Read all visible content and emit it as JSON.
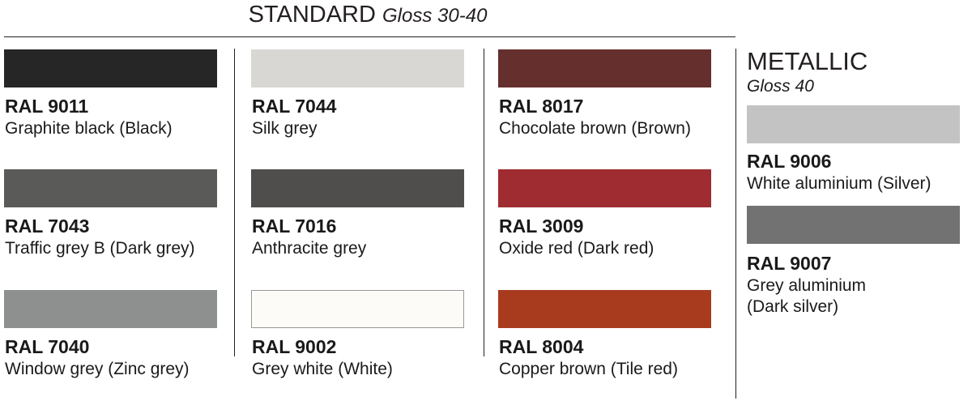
{
  "header": {
    "title": "STANDARD",
    "subtitle": "Gloss 30-40"
  },
  "columns": [
    [
      {
        "code": "RAL 9011",
        "name": "Graphite black (Black)",
        "color": "#262626"
      },
      {
        "code": "RAL 7043",
        "name": "Traffic grey B (Dark grey)",
        "color": "#5a5b58"
      },
      {
        "code": "RAL 7040",
        "name": "Window grey (Zinc grey)",
        "color": "#8e8f8f"
      }
    ],
    [
      {
        "code": "RAL 7044",
        "name": "Silk grey",
        "color": "#d8d7d3"
      },
      {
        "code": "RAL 7016",
        "name": "Anthracite grey",
        "color": "#4f4e4d"
      },
      {
        "code": "RAL 9002",
        "name": "Grey white (White)",
        "color": "#fcfbf7"
      }
    ],
    [
      {
        "code": "RAL 8017",
        "name": "Chocolate brown (Brown)",
        "color": "#652f2d"
      },
      {
        "code": "RAL 3009",
        "name": "Oxide red (Dark red)",
        "color": "#9f2c30"
      },
      {
        "code": "RAL 8004",
        "name": "Copper brown (Tile red)",
        "color": "#a83b1e"
      }
    ]
  ],
  "metallic": {
    "title": "METALLIC",
    "subtitle": "Gloss 40",
    "items": [
      {
        "code": "RAL 9006",
        "name": "White aluminium (Silver)",
        "color": "#c4c3c4"
      },
      {
        "code": "RAL 9007",
        "name_line1": "Grey aluminium",
        "name_line2": "(Dark silver)",
        "color": "#737273"
      }
    ]
  }
}
